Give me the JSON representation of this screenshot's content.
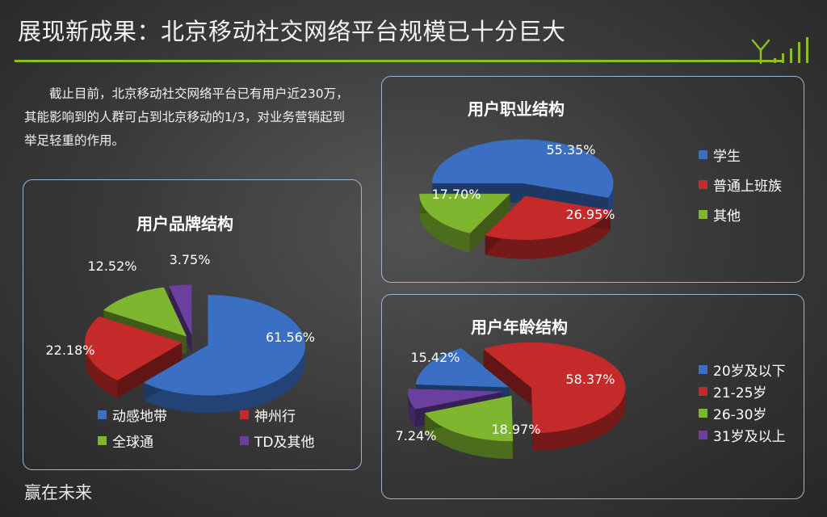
{
  "slide": {
    "title": "展现新成果：北京移动社交网络平台规模已十分巨大",
    "intro": "截止目前，北京移动社交网络平台已有用户近230万，其能影响到的人群可占到北京移动的1/3，对业务营销起到举足轻重的作用。",
    "footer": "赢在未来",
    "accent_color": "#8cbf26"
  },
  "chart_data": [
    {
      "id": "brand",
      "type": "pie",
      "title": "用户品牌结构",
      "categories": [
        "动感地带",
        "神州行",
        "全球通",
        "TD及其他"
      ],
      "values": [
        61.56,
        22.18,
        12.52,
        3.75
      ],
      "labels": [
        "61.56%",
        "22.18%",
        "12.52%",
        "3.75%"
      ],
      "colors": [
        "#3a6fc4",
        "#c42a2a",
        "#7fb630",
        "#6a3fa0"
      ],
      "legend": "bottom"
    },
    {
      "id": "job",
      "type": "pie",
      "title": "用户职业结构",
      "categories": [
        "学生",
        "普通上班族",
        "其他"
      ],
      "values": [
        55.35,
        26.95,
        17.7
      ],
      "labels": [
        "55.35%",
        "26.95%",
        "17.70%"
      ],
      "colors": [
        "#3a6fc4",
        "#c42a2a",
        "#7fb630"
      ],
      "legend": "right"
    },
    {
      "id": "age",
      "type": "pie",
      "title": "用户年龄结构",
      "categories": [
        "20岁及以下",
        "21-25岁",
        "26-30岁",
        "31岁及以上"
      ],
      "values": [
        15.42,
        58.37,
        18.97,
        7.24
      ],
      "labels": [
        "15.42%",
        "58.37%",
        "18.97%",
        "7.24%"
      ],
      "colors": [
        "#3a6fc4",
        "#c42a2a",
        "#7fb630",
        "#6a3fa0"
      ],
      "legend": "right"
    }
  ]
}
